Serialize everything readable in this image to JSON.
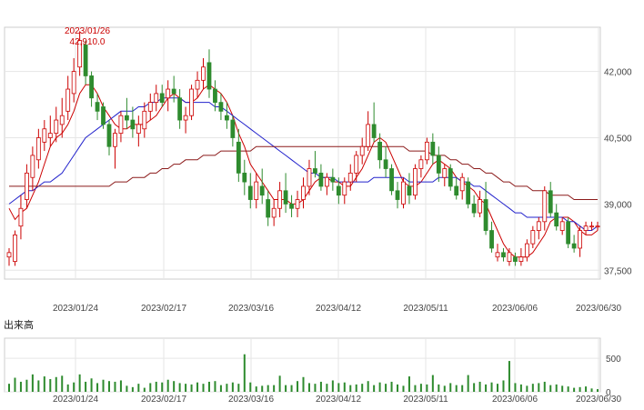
{
  "chart_data": [
    {
      "type": "candlestick",
      "title": "",
      "x_tick_labels": [
        "2023/01/24",
        "2023/02/17",
        "2023/03/16",
        "2023/04/12",
        "2023/05/11",
        "2023/06/06",
        "2023/06/30"
      ],
      "y_tick_labels": [
        "42,000",
        "40,500",
        "39,000",
        "37,500"
      ],
      "y_ticks": [
        42000,
        40500,
        39000,
        37500
      ],
      "ylim": [
        37300,
        43000
      ],
      "grid": true,
      "peak_annotation": {
        "date": "2023/01/26",
        "value": "42,910.0"
      },
      "moving_average_colors": {
        "short": "#cc0000",
        "medium": "#2222cc",
        "long": "#8b1a1a"
      },
      "up_color": "#ffffff",
      "up_border": "#cc0000",
      "down_color": "#2e8b2e",
      "candles": {
        "fields": [
          "open",
          "high",
          "low",
          "close"
        ],
        "values": [
          [
            37800,
            38000,
            37600,
            37900
          ],
          [
            37700,
            38400,
            37600,
            38300
          ],
          [
            38500,
            39200,
            38200,
            38900
          ],
          [
            39100,
            39900,
            38900,
            39700
          ],
          [
            39600,
            40300,
            39300,
            40100
          ],
          [
            40000,
            40700,
            39800,
            40500
          ],
          [
            40400,
            40900,
            40200,
            40700
          ],
          [
            40500,
            41000,
            40300,
            40600
          ],
          [
            40600,
            41200,
            40400,
            40900
          ],
          [
            40800,
            41400,
            40500,
            41000
          ],
          [
            41100,
            41900,
            40900,
            41600
          ],
          [
            41500,
            42300,
            41300,
            42000
          ],
          [
            42100,
            42910,
            41900,
            42700
          ],
          [
            42600,
            42700,
            41700,
            41900
          ],
          [
            41900,
            42000,
            41200,
            41400
          ],
          [
            41300,
            41500,
            40900,
            41100
          ],
          [
            41200,
            41300,
            40700,
            40800
          ],
          [
            40800,
            40900,
            40100,
            40300
          ],
          [
            40300,
            40700,
            39800,
            40600
          ],
          [
            40600,
            41100,
            40400,
            41000
          ],
          [
            41000,
            41400,
            40700,
            40900
          ],
          [
            40900,
            41200,
            40500,
            40700
          ],
          [
            40600,
            41000,
            40300,
            40800
          ],
          [
            40700,
            41300,
            40500,
            41100
          ],
          [
            41100,
            41500,
            40900,
            41300
          ],
          [
            41300,
            41700,
            41100,
            41500
          ],
          [
            41500,
            41700,
            41200,
            41300
          ],
          [
            41400,
            41800,
            41100,
            41600
          ],
          [
            41600,
            41900,
            41300,
            41500
          ],
          [
            41400,
            41600,
            40700,
            40900
          ],
          [
            40900,
            41200,
            40600,
            41000
          ],
          [
            41000,
            41700,
            40900,
            41600
          ],
          [
            41600,
            42000,
            41400,
            41800
          ],
          [
            41800,
            42300,
            41600,
            42100
          ],
          [
            42200,
            42500,
            41400,
            41600
          ],
          [
            41600,
            41800,
            41100,
            41300
          ],
          [
            41300,
            41500,
            40900,
            41100
          ],
          [
            41000,
            41300,
            40700,
            40900
          ],
          [
            40900,
            41000,
            40300,
            40500
          ],
          [
            40400,
            40700,
            39500,
            39700
          ],
          [
            39700,
            40000,
            39200,
            39500
          ],
          [
            39400,
            39700,
            38900,
            39100
          ],
          [
            39100,
            39700,
            38900,
            39500
          ],
          [
            39400,
            39800,
            39000,
            39200
          ],
          [
            39100,
            39300,
            38500,
            38700
          ],
          [
            38700,
            39100,
            38500,
            38900
          ],
          [
            38900,
            39500,
            38700,
            39300
          ],
          [
            39300,
            39700,
            38800,
            39000
          ],
          [
            39000,
            39200,
            38700,
            38900
          ],
          [
            38900,
            39300,
            38700,
            39100
          ],
          [
            39100,
            39600,
            38900,
            39400
          ],
          [
            39400,
            40000,
            39200,
            39800
          ],
          [
            39800,
            40200,
            39600,
            39700
          ],
          [
            39700,
            39900,
            39300,
            39400
          ],
          [
            39400,
            39700,
            39200,
            39600
          ],
          [
            39600,
            39800,
            39300,
            39500
          ],
          [
            39400,
            39600,
            39000,
            39200
          ],
          [
            39200,
            39600,
            39000,
            39500
          ],
          [
            39500,
            39900,
            39300,
            39700
          ],
          [
            39700,
            40200,
            39500,
            40100
          ],
          [
            40100,
            40500,
            39900,
            40300
          ],
          [
            40300,
            41100,
            40200,
            40800
          ],
          [
            40800,
            41300,
            40400,
            40500
          ],
          [
            40400,
            40600,
            39800,
            40000
          ],
          [
            40000,
            40300,
            39600,
            39800
          ],
          [
            39800,
            39900,
            39200,
            39300
          ],
          [
            39300,
            39500,
            38900,
            39100
          ],
          [
            39000,
            39600,
            38900,
            39500
          ],
          [
            39400,
            39700,
            39000,
            39200
          ],
          [
            39200,
            39900,
            39100,
            39800
          ],
          [
            39800,
            40100,
            39600,
            40000
          ],
          [
            40000,
            40500,
            39900,
            40400
          ],
          [
            40400,
            40600,
            39900,
            40100
          ],
          [
            40100,
            40300,
            39500,
            39700
          ],
          [
            39600,
            39900,
            39400,
            39800
          ],
          [
            39800,
            39900,
            39300,
            39400
          ],
          [
            39400,
            39600,
            39100,
            39200
          ],
          [
            39300,
            39700,
            39100,
            39600
          ],
          [
            39500,
            39600,
            38900,
            39000
          ],
          [
            39000,
            39200,
            38700,
            38800
          ],
          [
            38800,
            39300,
            38700,
            39100
          ],
          [
            39100,
            39500,
            38300,
            38400
          ],
          [
            38400,
            38600,
            37900,
            38000
          ],
          [
            37800,
            38100,
            37700,
            37900
          ],
          [
            37900,
            38000,
            37700,
            37800
          ],
          [
            37700,
            38000,
            37600,
            37900
          ],
          [
            37800,
            37900,
            37600,
            37700
          ],
          [
            37700,
            38000,
            37600,
            37800
          ],
          [
            37800,
            38200,
            37700,
            38100
          ],
          [
            38100,
            38500,
            38000,
            38400
          ],
          [
            38400,
            38700,
            38200,
            38600
          ],
          [
            38600,
            39400,
            38400,
            39300
          ],
          [
            39300,
            39500,
            38700,
            38800
          ],
          [
            38800,
            39000,
            38400,
            38500
          ],
          [
            38400,
            38700,
            38300,
            38600
          ],
          [
            38600,
            38700,
            38000,
            38100
          ],
          [
            38100,
            38300,
            37900,
            38000
          ],
          [
            38000,
            38500,
            37800,
            38400
          ],
          [
            38400,
            38600,
            38300,
            38500
          ],
          [
            38500,
            38600,
            38400,
            38500
          ],
          [
            38500,
            38600,
            38400,
            38500
          ]
        ]
      },
      "series": [
        {
          "values": [
            38900,
            38650,
            38800,
            38900,
            39200,
            39500,
            39900,
            40300,
            40500,
            40600,
            40800,
            41100,
            41500,
            41700,
            41700,
            41500,
            41200,
            41000,
            40800,
            40700,
            40700,
            40800,
            40800,
            40800,
            40900,
            41000,
            41200,
            41400,
            41500,
            41400,
            41300,
            41300,
            41400,
            41600,
            41700,
            41600,
            41500,
            41300,
            41000,
            40600,
            40300,
            39900,
            39700,
            39500,
            39300,
            39100,
            39100,
            39100,
            39000,
            39000,
            39100,
            39300,
            39500,
            39600,
            39600,
            39500,
            39500,
            39400,
            39400,
            39600,
            39800,
            40100,
            40400,
            40500,
            40400,
            40100,
            39800,
            39500,
            39400,
            39400,
            39500,
            39700,
            39900,
            40000,
            39900,
            39800,
            39600,
            39500,
            39400,
            39300,
            39100,
            39000,
            38700,
            38400,
            38100,
            37900,
            37800,
            37800,
            37800,
            37900,
            38100,
            38300,
            38600,
            38700,
            38700,
            38700,
            38600,
            38400,
            38300,
            38300,
            38400
          ]
        },
        {
          "values": [
            39000,
            39100,
            39200,
            39300,
            39300,
            39400,
            39500,
            39500,
            39600,
            39700,
            39900,
            40100,
            40300,
            40500,
            40600,
            40700,
            40800,
            40900,
            41000,
            41100,
            41100,
            41100,
            41200,
            41200,
            41300,
            41300,
            41400,
            41400,
            41400,
            41400,
            41300,
            41300,
            41300,
            41300,
            41300,
            41200,
            41200,
            41100,
            41000,
            40900,
            40800,
            40700,
            40600,
            40500,
            40400,
            40300,
            40200,
            40100,
            40000,
            39900,
            39800,
            39700,
            39700,
            39600,
            39600,
            39600,
            39500,
            39500,
            39500,
            39500,
            39500,
            39500,
            39600,
            39600,
            39600,
            39600,
            39600,
            39600,
            39500,
            39500,
            39500,
            39500,
            39500,
            39600,
            39600,
            39600,
            39600,
            39500,
            39500,
            39400,
            39400,
            39300,
            39200,
            39100,
            39000,
            38900,
            38800,
            38800,
            38700,
            38700,
            38700,
            38700,
            38700,
            38700,
            38700,
            38600,
            38600,
            38500,
            38400,
            38400,
            38500
          ]
        },
        {
          "values": [
            39400,
            39400,
            39400,
            39400,
            39400,
            39400,
            39400,
            39400,
            39400,
            39400,
            39400,
            39400,
            39400,
            39400,
            39400,
            39400,
            39400,
            39400,
            39500,
            39500,
            39500,
            39600,
            39600,
            39600,
            39700,
            39700,
            39800,
            39800,
            39900,
            39900,
            40000,
            40000,
            40000,
            40100,
            40100,
            40100,
            40200,
            40200,
            40200,
            40200,
            40200,
            40200,
            40300,
            40300,
            40300,
            40300,
            40300,
            40300,
            40300,
            40300,
            40300,
            40300,
            40300,
            40300,
            40300,
            40300,
            40300,
            40300,
            40300,
            40300,
            40300,
            40300,
            40300,
            40300,
            40300,
            40300,
            40300,
            40300,
            40200,
            40200,
            40200,
            40200,
            40100,
            40100,
            40100,
            40000,
            40000,
            39900,
            39900,
            39800,
            39800,
            39700,
            39700,
            39600,
            39500,
            39500,
            39400,
            39400,
            39400,
            39300,
            39300,
            39300,
            39200,
            39200,
            39200,
            39200,
            39100,
            39100,
            39100,
            39100,
            39100
          ]
        }
      ]
    },
    {
      "type": "bar",
      "title": "出来高",
      "x_tick_labels": [
        "2023/01/24",
        "2023/02/17",
        "2023/03/16",
        "2023/04/12",
        "2023/05/11",
        "2023/06/06",
        "2023/06/30"
      ],
      "y_tick_labels": [
        "500",
        "0"
      ],
      "y_ticks": [
        500,
        0
      ],
      "ylim": [
        0,
        800
      ],
      "bar_color": "#2e8b2e",
      "values": [
        120,
        210,
        150,
        180,
        260,
        170,
        230,
        190,
        220,
        240,
        110,
        140,
        260,
        150,
        200,
        130,
        180,
        160,
        150,
        170,
        90,
        70,
        120,
        60,
        130,
        150,
        140,
        180,
        160,
        130,
        120,
        110,
        140,
        120,
        150,
        160,
        100,
        120,
        140,
        120,
        560,
        140,
        80,
        90,
        100,
        100,
        240,
        100,
        100,
        160,
        220,
        130,
        120,
        150,
        120,
        170,
        130,
        140,
        100,
        110,
        120,
        160,
        100,
        140,
        120,
        150,
        110,
        90,
        230,
        100,
        120,
        110,
        250,
        110,
        90,
        130,
        100,
        100,
        250,
        130,
        150,
        110,
        140,
        120,
        170,
        460,
        130,
        110,
        90,
        120,
        130,
        150,
        100,
        110,
        90,
        80,
        60,
        70,
        80,
        50,
        40
      ]
    }
  ]
}
